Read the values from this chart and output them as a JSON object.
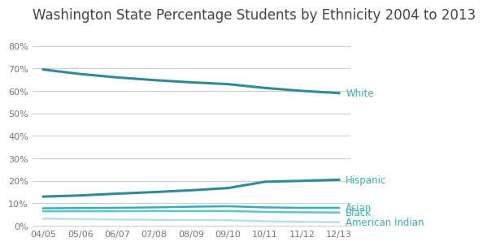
{
  "title": "Washington State Percentage Students by Ethnicity 2004 to 2013",
  "x_labels": [
    "04/05",
    "05/06",
    "06/07",
    "07/08",
    "08/09",
    "09/10",
    "10/11",
    "11/12",
    "12/13"
  ],
  "series": {
    "White": {
      "values": [
        0.695,
        0.675,
        0.66,
        0.648,
        0.638,
        0.63,
        0.613,
        0.6,
        0.59
      ],
      "color": "#2E8B9A",
      "linewidth": 2.2
    },
    "Hispanic": {
      "values": [
        0.13,
        0.135,
        0.143,
        0.15,
        0.158,
        0.168,
        0.196,
        0.2,
        0.205
      ],
      "color": "#2E8B9A",
      "linewidth": 2.2
    },
    "Asian": {
      "values": [
        0.078,
        0.079,
        0.08,
        0.082,
        0.085,
        0.087,
        0.082,
        0.08,
        0.08
      ],
      "color": "#3AACB8",
      "linewidth": 1.8
    },
    "Black": {
      "values": [
        0.065,
        0.065,
        0.065,
        0.066,
        0.066,
        0.066,
        0.062,
        0.06,
        0.059
      ],
      "color": "#5DC5D0",
      "linewidth": 1.8
    },
    "American Indian": {
      "values": [
        0.032,
        0.03,
        0.028,
        0.027,
        0.026,
        0.025,
        0.02,
        0.018,
        0.016
      ],
      "color": "#B8E0E8",
      "linewidth": 1.8
    }
  },
  "series_order": [
    "White",
    "Hispanic",
    "Asian",
    "Black",
    "American Indian"
  ],
  "ylim": [
    0,
    0.88
  ],
  "yticks": [
    0,
    0.1,
    0.2,
    0.3,
    0.4,
    0.5,
    0.6,
    0.7,
    0.8
  ],
  "ytick_labels": [
    "0%",
    "10%",
    "20%",
    "30%",
    "40%",
    "50%",
    "60%",
    "70%",
    "80%"
  ],
  "background_color": "#ffffff",
  "grid_color": "#cccccc",
  "title_fontsize": 12,
  "tick_fontsize": 8,
  "label_fontsize": 8.5,
  "label_colors": {
    "White": "#3AACB8",
    "Hispanic": "#3AACB8",
    "Asian": "#3AACB8",
    "Black": "#3AACB8",
    "American Indian": "#3AACB8"
  }
}
